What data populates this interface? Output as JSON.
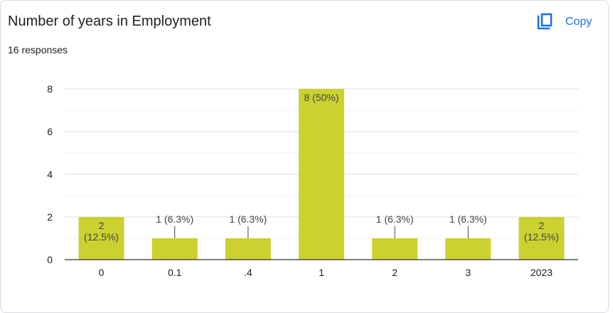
{
  "header": {
    "title": "Number of years in Employment",
    "responses": "16 responses",
    "copy_label": "Copy",
    "copy_icon": "copy-icon"
  },
  "colors": {
    "bar": "#cbd12f",
    "accent": "#1a73e8",
    "grid": "#e8e8e8",
    "axis": "#333333",
    "text": "#202124"
  },
  "chart_data": {
    "type": "bar",
    "categories": [
      "0",
      "0.1",
      ".4",
      "1",
      "2",
      "3",
      "2023"
    ],
    "values": [
      2,
      1,
      1,
      8,
      1,
      1,
      2
    ],
    "data_labels": [
      [
        "2",
        "(12.5%)"
      ],
      [
        "1 (6.3%)"
      ],
      [
        "1 (6.3%)"
      ],
      [
        "8 (50%)"
      ],
      [
        "1 (6.3%)"
      ],
      [
        "1 (6.3%)"
      ],
      [
        "2",
        "(12.5%)"
      ]
    ],
    "ylim": [
      0,
      8
    ],
    "yticks": [
      0,
      2,
      4,
      6,
      8
    ],
    "grid": true,
    "title": "Number of years in Employment",
    "xlabel": "",
    "ylabel": ""
  }
}
